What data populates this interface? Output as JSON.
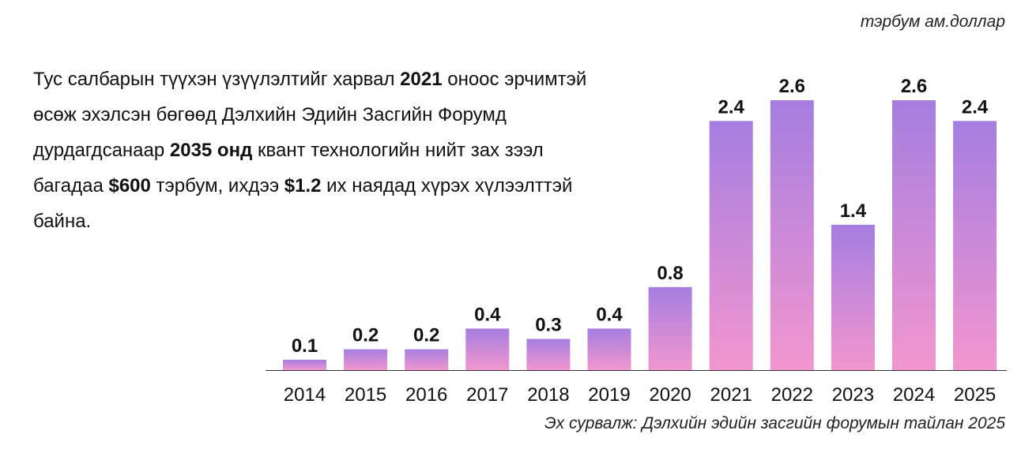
{
  "unit_label": "тэрбум ам.доллар",
  "description": {
    "parts": [
      {
        "text": "Тус салбарын түүхэн үзүүлэлтийг харвал ",
        "bold": false
      },
      {
        "text": "2021",
        "bold": true
      },
      {
        "text": " оноос эрчимтэй өсөж эхэлсэн бөгөөд Дэлхийн Эдийн Засгийн Форумд дурдагдсанаар ",
        "bold": false
      },
      {
        "text": "2035 онд",
        "bold": true
      },
      {
        "text": " квант технологийн нийт зах зээл багадаа ",
        "bold": false
      },
      {
        "text": "$600",
        "bold": true
      },
      {
        "text": " тэрбум, ихдээ  ",
        "bold": false
      },
      {
        "text": "$1.2",
        "bold": true
      },
      {
        "text": " их наядад хүрэх хүлээлттэй байна.",
        "bold": false
      }
    ]
  },
  "source": "Эх сурвалж: Дэлхийн эдийн засгийн форумын тайлан 2025",
  "colors": {
    "bar_top": "#a57ee0",
    "bar_bottom": "#f296cf",
    "axis": "#333333"
  },
  "chart_data": {
    "type": "bar",
    "categories": [
      "2014",
      "2015",
      "2016",
      "2017",
      "2018",
      "2019",
      "2020",
      "2021",
      "2022",
      "2023",
      "2024",
      "2025"
    ],
    "values": [
      0.1,
      0.2,
      0.2,
      0.4,
      0.3,
      0.4,
      0.8,
      2.4,
      2.6,
      1.4,
      2.6,
      2.4
    ],
    "value_labels": [
      "0.1",
      "0.2",
      "0.2",
      "0.4",
      "0.3",
      "0.4",
      "0.8",
      "2.4",
      "2.6",
      "1.4",
      "2.6",
      "2.4"
    ],
    "ylim": [
      0,
      2.6
    ],
    "grid": false,
    "legend": "none"
  }
}
